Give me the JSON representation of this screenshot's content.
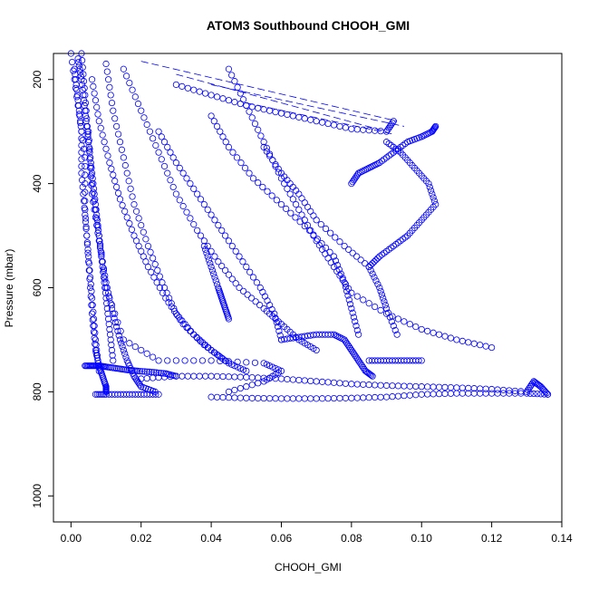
{
  "chart_data": {
    "type": "scatter",
    "title": "ATOM3 Southbound CHOOH_GMI",
    "xlabel": "CHOOH_GMI",
    "ylabel": "Pressure (mbar)",
    "xlim": [
      -0.005,
      0.14
    ],
    "ylim": [
      1050,
      150
    ],
    "y_reversed": true,
    "x_ticks": [
      "0.00",
      "0.02",
      "0.04",
      "0.06",
      "0.08",
      "0.10",
      "0.12",
      "0.14"
    ],
    "y_ticks": [
      "200",
      "400",
      "600",
      "800",
      "1000"
    ],
    "x_tick_values": [
      0,
      0.02,
      0.04,
      0.06,
      0.08,
      0.1,
      0.12,
      0.14
    ],
    "y_tick_values": [
      200,
      400,
      600,
      800,
      1000
    ],
    "marker": "open-circle",
    "color": "#0000ff",
    "series": [
      {
        "x": [
          0.0,
          0.002,
          0.004,
          0.004,
          0.005,
          0.006,
          0.007,
          0.008,
          0.009,
          0.01,
          0.01
        ],
        "y": [
          150,
          250,
          350,
          450,
          550,
          650,
          720,
          750,
          770,
          790,
          800
        ]
      },
      {
        "x": [
          0.003,
          0.004,
          0.005,
          0.006,
          0.008,
          0.01,
          0.012,
          0.014,
          0.016,
          0.018,
          0.02,
          0.024
        ],
        "y": [
          150,
          230,
          320,
          420,
          510,
          590,
          650,
          700,
          740,
          770,
          790,
          800
        ]
      },
      {
        "x": [
          0.01,
          0.012,
          0.015,
          0.018,
          0.022,
          0.026,
          0.03,
          0.035,
          0.04,
          0.045,
          0.05
        ],
        "y": [
          170,
          260,
          350,
          440,
          520,
          590,
          650,
          690,
          720,
          745,
          760
        ]
      },
      {
        "x": [
          0.015,
          0.02,
          0.025,
          0.03,
          0.036,
          0.042,
          0.048,
          0.055,
          0.06,
          0.065,
          0.07
        ],
        "y": [
          180,
          260,
          340,
          420,
          490,
          550,
          600,
          640,
          670,
          700,
          720
        ]
      },
      {
        "x": [
          0.005,
          0.006,
          0.008,
          0.01,
          0.015,
          0.025,
          0.04,
          0.055,
          0.06,
          0.055,
          0.045
        ],
        "y": [
          300,
          400,
          500,
          600,
          700,
          740,
          740,
          745,
          760,
          780,
          800
        ]
      },
      {
        "x": [
          0.045,
          0.05,
          0.055,
          0.06,
          0.065,
          0.07,
          0.075,
          0.08,
          0.09,
          0.1,
          0.11,
          0.12
        ],
        "y": [
          180,
          250,
          320,
          390,
          450,
          510,
          560,
          610,
          650,
          680,
          700,
          715
        ]
      },
      {
        "x": [
          0.04,
          0.045,
          0.052,
          0.06,
          0.068,
          0.075,
          0.078,
          0.08,
          0.082
        ],
        "y": [
          270,
          330,
          390,
          440,
          490,
          540,
          590,
          640,
          690
        ]
      },
      {
        "x": [
          0.055,
          0.06,
          0.065,
          0.07,
          0.078,
          0.085,
          0.088,
          0.09,
          0.093
        ],
        "y": [
          330,
          380,
          420,
          470,
          520,
          560,
          600,
          640,
          690
        ]
      },
      {
        "x": [
          0.09,
          0.094,
          0.098,
          0.102,
          0.104,
          0.1,
          0.096,
          0.092,
          0.088,
          0.085
        ],
        "y": [
          320,
          340,
          370,
          400,
          440,
          470,
          500,
          520,
          540,
          560
        ]
      },
      {
        "x": [
          0.08,
          0.082,
          0.085,
          0.088,
          0.092,
          0.096,
          0.1,
          0.103,
          0.104
        ],
        "y": [
          400,
          380,
          370,
          360,
          340,
          320,
          310,
          300,
          290
        ]
      },
      {
        "x": [
          0.06,
          0.065,
          0.07,
          0.075,
          0.078,
          0.08,
          0.082,
          0.084,
          0.086
        ],
        "y": [
          700,
          695,
          690,
          690,
          700,
          720,
          740,
          760,
          770
        ]
      },
      {
        "x": [
          0.085,
          0.09,
          0.095,
          0.1
        ],
        "y": [
          740,
          740,
          740,
          740
        ]
      },
      {
        "x": [
          0.02,
          0.03,
          0.04,
          0.05,
          0.06,
          0.07,
          0.08,
          0.09,
          0.1,
          0.11,
          0.12,
          0.13,
          0.132,
          0.134,
          0.136
        ],
        "y": [
          775,
          770,
          770,
          772,
          775,
          780,
          785,
          788,
          790,
          792,
          795,
          800,
          780,
          790,
          805
        ]
      },
      {
        "x": [
          0.04,
          0.05,
          0.06,
          0.07,
          0.08,
          0.09,
          0.1,
          0.11,
          0.12,
          0.13,
          0.136
        ],
        "y": [
          810,
          812,
          813,
          813,
          812,
          810,
          805,
          803,
          803,
          803,
          805
        ]
      },
      {
        "x": [
          0.007,
          0.01,
          0.015,
          0.02,
          0.025
        ],
        "y": [
          805,
          805,
          805,
          805,
          805
        ]
      },
      {
        "x": [
          0.004,
          0.006,
          0.008,
          0.01,
          0.013,
          0.016,
          0.019,
          0.023,
          0.027,
          0.03
        ],
        "y": [
          750,
          750,
          750,
          752,
          755,
          758,
          760,
          762,
          765,
          770
        ]
      },
      {
        "x": [
          0.002,
          0.003,
          0.004,
          0.005,
          0.006,
          0.007,
          0.008,
          0.009,
          0.01,
          0.011,
          0.012
        ],
        "y": [
          160,
          200,
          260,
          320,
          380,
          440,
          500,
          560,
          620,
          680,
          740
        ]
      },
      {
        "x": [
          0.001,
          0.002,
          0.003,
          0.003,
          0.004,
          0.005,
          0.006,
          0.007,
          0.008
        ],
        "y": [
          180,
          240,
          300,
          380,
          460,
          540,
          620,
          700,
          760
        ]
      },
      {
        "x": [
          0.006,
          0.008,
          0.011,
          0.014,
          0.018,
          0.022,
          0.027,
          0.032,
          0.038,
          0.044
        ],
        "y": [
          200,
          280,
          360,
          430,
          500,
          560,
          620,
          670,
          710,
          740
        ]
      },
      {
        "x": [
          0.025,
          0.03,
          0.036,
          0.042,
          0.048,
          0.054,
          0.058,
          0.06
        ],
        "y": [
          300,
          360,
          420,
          480,
          540,
          600,
          650,
          700
        ]
      },
      {
        "x": [
          0.038,
          0.04,
          0.042,
          0.043,
          0.044,
          0.045
        ],
        "y": [
          520,
          560,
          600,
          620,
          640,
          660
        ]
      },
      {
        "x": [
          0.03,
          0.04,
          0.05,
          0.06,
          0.07,
          0.08,
          0.09,
          0.092
        ],
        "y": [
          210,
          230,
          250,
          265,
          280,
          295,
          300,
          280
        ]
      }
    ],
    "dashed_segments": [
      {
        "x": [
          0.02,
          0.093
        ],
        "y": [
          165,
          280
        ]
      },
      {
        "x": [
          0.03,
          0.09
        ],
        "y": [
          190,
          300
        ]
      },
      {
        "x": [
          0.04,
          0.095
        ],
        "y": [
          210,
          290
        ]
      },
      {
        "x": [
          0.05,
          0.092
        ],
        "y": [
          245,
          305
        ]
      }
    ]
  }
}
